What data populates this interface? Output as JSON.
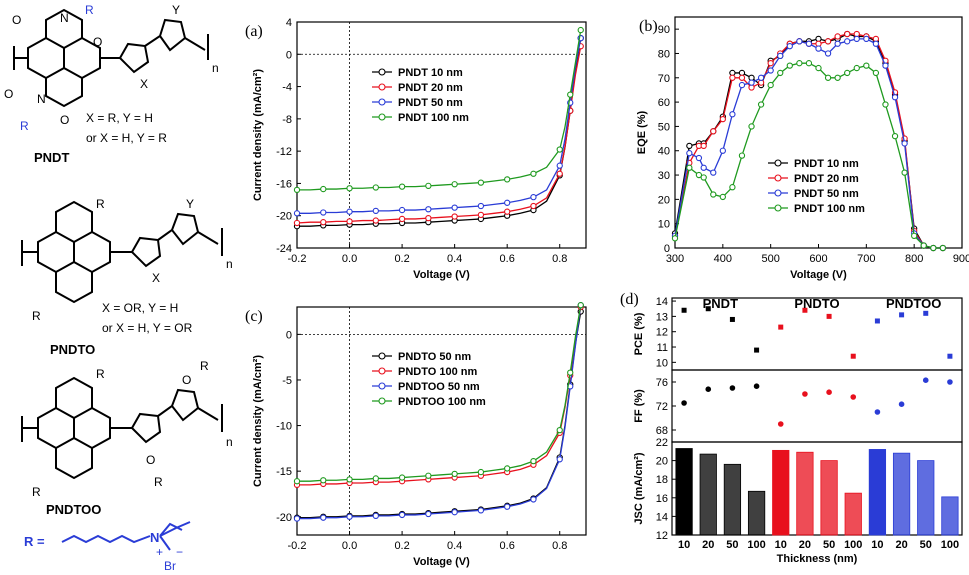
{
  "chem": {
    "pndt_name": "PNDT",
    "pndto_name": "PNDTO",
    "pndtoo_name": "PNDTOO",
    "r": "R",
    "y": "Y",
    "x": "X",
    "n": "n",
    "o": "O",
    "pndt_cond1": "X = R, Y = H",
    "pndt_cond2": "or X = H, Y = R",
    "pndto_cond1": "X = OR, Y = H",
    "pndto_cond2": "or X = H, Y = OR",
    "r_def": "R =",
    "n_plus": "N",
    "plus": "+",
    "minus": "−",
    "br": "Br"
  },
  "colors": {
    "black": "#000000",
    "red": "#e8101d",
    "blue": "#2a3cd6",
    "green": "#1f9a1f"
  },
  "chart_data": [
    {
      "panel": "(a)",
      "type": "line",
      "xlabel": "Voltage (V)",
      "ylabel": "Current density (mA/cm²)",
      "xlim": [
        -0.2,
        0.9
      ],
      "ylim": [
        -24,
        4
      ],
      "xticks": [
        "-0.2",
        "0.0",
        "0.2",
        "0.4",
        "0.6",
        "0.8"
      ],
      "yticks": [
        "4",
        "0",
        "-4",
        "-8",
        "-12",
        "-16",
        "-20",
        "-24"
      ],
      "legend_position": "center-left",
      "series": [
        {
          "name": "PNDT 10 nm",
          "color": "#000000",
          "x": [
            -0.2,
            -0.15,
            -0.1,
            -0.05,
            0,
            0.05,
            0.1,
            0.15,
            0.2,
            0.25,
            0.3,
            0.35,
            0.4,
            0.45,
            0.5,
            0.55,
            0.6,
            0.65,
            0.7,
            0.75,
            0.8,
            0.82,
            0.84,
            0.86,
            0.88
          ],
          "y": [
            -21.3,
            -21.3,
            -21.2,
            -21.2,
            -21.1,
            -21.1,
            -21.0,
            -21.0,
            -20.9,
            -20.9,
            -20.8,
            -20.7,
            -20.6,
            -20.5,
            -20.4,
            -20.2,
            -20.0,
            -19.7,
            -19.3,
            -18.2,
            -15.0,
            -11.5,
            -7.0,
            -2.0,
            2.0
          ]
        },
        {
          "name": "PNDT 20 nm",
          "color": "#e8101d",
          "x": [
            -0.2,
            -0.15,
            -0.1,
            -0.05,
            0,
            0.05,
            0.1,
            0.15,
            0.2,
            0.25,
            0.3,
            0.35,
            0.4,
            0.45,
            0.5,
            0.55,
            0.6,
            0.65,
            0.7,
            0.75,
            0.8,
            0.82,
            0.84,
            0.86,
            0.88
          ],
          "y": [
            -20.9,
            -20.8,
            -20.8,
            -20.7,
            -20.7,
            -20.6,
            -20.6,
            -20.5,
            -20.4,
            -20.4,
            -20.3,
            -20.2,
            -20.1,
            -20.0,
            -19.9,
            -19.7,
            -19.5,
            -19.2,
            -18.8,
            -17.8,
            -14.8,
            -11.5,
            -7.0,
            -2.5,
            1.0
          ]
        },
        {
          "name": "PNDT 50 nm",
          "color": "#2a3cd6",
          "x": [
            -0.2,
            -0.15,
            -0.1,
            -0.05,
            0,
            0.05,
            0.1,
            0.15,
            0.2,
            0.25,
            0.3,
            0.35,
            0.4,
            0.45,
            0.5,
            0.55,
            0.6,
            0.65,
            0.7,
            0.75,
            0.8,
            0.82,
            0.84,
            0.86,
            0.88
          ],
          "y": [
            -19.7,
            -19.7,
            -19.6,
            -19.6,
            -19.5,
            -19.5,
            -19.4,
            -19.4,
            -19.3,
            -19.3,
            -19.2,
            -19.1,
            -19.0,
            -18.9,
            -18.8,
            -18.6,
            -18.4,
            -18.1,
            -17.7,
            -16.8,
            -13.8,
            -10.5,
            -6.0,
            -1.5,
            2.0
          ]
        },
        {
          "name": "PNDT 100 nm",
          "color": "#1f9a1f",
          "x": [
            -0.2,
            -0.15,
            -0.1,
            -0.05,
            0,
            0.05,
            0.1,
            0.15,
            0.2,
            0.25,
            0.3,
            0.35,
            0.4,
            0.45,
            0.5,
            0.55,
            0.6,
            0.65,
            0.7,
            0.75,
            0.8,
            0.82,
            0.84,
            0.86,
            0.88
          ],
          "y": [
            -16.8,
            -16.8,
            -16.7,
            -16.7,
            -16.6,
            -16.6,
            -16.5,
            -16.5,
            -16.4,
            -16.4,
            -16.3,
            -16.2,
            -16.1,
            -16.0,
            -15.9,
            -15.7,
            -15.5,
            -15.2,
            -14.8,
            -14.0,
            -11.8,
            -9.0,
            -5.0,
            -1.0,
            3.0
          ]
        }
      ]
    },
    {
      "panel": "(b)",
      "type": "line",
      "xlabel": "Voltage (V)",
      "ylabel": "EQE (%)",
      "xlim": [
        300,
        900
      ],
      "ylim": [
        0,
        95
      ],
      "xticks": [
        "300",
        "400",
        "500",
        "600",
        "700",
        "800",
        "900"
      ],
      "yticks": [
        "0",
        "10",
        "20",
        "30",
        "40",
        "50",
        "60",
        "70",
        "80",
        "90"
      ],
      "legend_position": "bottom-center",
      "series": [
        {
          "name": "PNDT 10 nm",
          "color": "#000000",
          "x": [
            300,
            330,
            350,
            360,
            380,
            400,
            420,
            440,
            460,
            480,
            500,
            520,
            540,
            560,
            580,
            600,
            620,
            640,
            660,
            680,
            700,
            720,
            740,
            760,
            780,
            800,
            820,
            840,
            860
          ],
          "y": [
            6,
            42,
            43,
            43,
            48,
            54,
            72,
            72,
            70,
            67,
            77,
            79,
            84,
            85,
            85,
            86,
            85,
            86,
            88,
            87,
            87,
            85,
            76,
            63,
            44,
            8,
            1,
            0,
            0
          ]
        },
        {
          "name": "PNDT 20 nm",
          "color": "#e8101d",
          "x": [
            300,
            330,
            350,
            360,
            380,
            400,
            420,
            440,
            460,
            480,
            500,
            520,
            540,
            560,
            580,
            600,
            620,
            640,
            660,
            680,
            700,
            720,
            740,
            760,
            780,
            800,
            820,
            840,
            860
          ],
          "y": [
            5,
            35,
            42,
            42,
            48,
            53,
            70,
            70,
            66,
            68,
            76,
            80,
            84,
            85,
            84,
            84,
            85,
            87,
            88,
            88,
            87,
            86,
            77,
            64,
            45,
            7,
            1,
            0,
            0
          ]
        },
        {
          "name": "PNDT 50 nm",
          "color": "#2a3cd6",
          "x": [
            300,
            330,
            350,
            360,
            380,
            400,
            420,
            440,
            460,
            480,
            500,
            520,
            540,
            560,
            580,
            600,
            620,
            640,
            660,
            680,
            700,
            720,
            740,
            760,
            780,
            800,
            820,
            840,
            860
          ],
          "y": [
            5,
            39,
            37,
            33,
            31,
            40,
            55,
            67,
            68,
            70,
            73,
            79,
            83,
            85,
            84,
            82,
            80,
            84,
            85,
            86,
            86,
            84,
            75,
            62,
            43,
            6,
            1,
            0,
            0
          ]
        },
        {
          "name": "PNDT 100 nm",
          "color": "#1f9a1f",
          "x": [
            300,
            330,
            350,
            360,
            380,
            400,
            420,
            440,
            460,
            480,
            500,
            520,
            540,
            560,
            580,
            600,
            620,
            640,
            660,
            680,
            700,
            720,
            740,
            760,
            780,
            800,
            820,
            840,
            860
          ],
          "y": [
            4,
            33,
            30,
            29,
            22,
            21,
            25,
            38,
            50,
            59,
            67,
            72,
            75,
            76,
            76,
            74,
            70,
            70,
            72,
            74,
            75,
            72,
            59,
            46,
            31,
            5,
            1,
            0,
            0
          ]
        }
      ]
    },
    {
      "panel": "(c)",
      "type": "line",
      "xlabel": "Voltage (V)",
      "ylabel": "Current density (mA/cm²)",
      "xlim": [
        -0.2,
        0.9
      ],
      "ylim": [
        -22,
        3
      ],
      "xticks": [
        "-0.2",
        "0.0",
        "0.2",
        "0.4",
        "0.6",
        "0.8"
      ],
      "yticks": [
        "0",
        "-5",
        "-10",
        "-15",
        "-20"
      ],
      "legend_position": "top-center",
      "series": [
        {
          "name": "PNDTO 50 nm",
          "color": "#000000",
          "x": [
            -0.2,
            -0.15,
            -0.1,
            -0.05,
            0,
            0.05,
            0.1,
            0.15,
            0.2,
            0.25,
            0.3,
            0.35,
            0.4,
            0.45,
            0.5,
            0.55,
            0.6,
            0.65,
            0.7,
            0.75,
            0.8,
            0.82,
            0.84,
            0.86,
            0.88
          ],
          "y": [
            -20.1,
            -20.1,
            -20.0,
            -20.0,
            -19.9,
            -19.9,
            -19.8,
            -19.8,
            -19.7,
            -19.7,
            -19.6,
            -19.5,
            -19.4,
            -19.3,
            -19.2,
            -19.0,
            -18.8,
            -18.5,
            -18.0,
            -16.8,
            -13.5,
            -10.0,
            -5.5,
            -1.0,
            2.5
          ]
        },
        {
          "name": "PNDTO 100 nm",
          "color": "#e8101d",
          "x": [
            -0.2,
            -0.15,
            -0.1,
            -0.05,
            0,
            0.05,
            0.1,
            0.15,
            0.2,
            0.25,
            0.3,
            0.35,
            0.4,
            0.45,
            0.5,
            0.55,
            0.6,
            0.65,
            0.7,
            0.75,
            0.8,
            0.82,
            0.84,
            0.86,
            0.88
          ],
          "y": [
            -16.5,
            -16.5,
            -16.4,
            -16.4,
            -16.3,
            -16.3,
            -16.2,
            -16.2,
            -16.1,
            -16.0,
            -15.9,
            -15.8,
            -15.7,
            -15.6,
            -15.5,
            -15.3,
            -15.1,
            -14.8,
            -14.3,
            -13.3,
            -10.8,
            -8.0,
            -4.5,
            -0.5,
            3.0
          ]
        },
        {
          "name": "PNDTOO 50 nm",
          "color": "#2a3cd6",
          "x": [
            -0.2,
            -0.15,
            -0.1,
            -0.05,
            0,
            0.05,
            0.1,
            0.15,
            0.2,
            0.25,
            0.3,
            0.35,
            0.4,
            0.45,
            0.5,
            0.55,
            0.6,
            0.65,
            0.7,
            0.75,
            0.8,
            0.82,
            0.84,
            0.86,
            0.88
          ],
          "y": [
            -20.2,
            -20.2,
            -20.1,
            -20.1,
            -20.0,
            -20.0,
            -19.9,
            -19.9,
            -19.8,
            -19.8,
            -19.7,
            -19.6,
            -19.5,
            -19.4,
            -19.3,
            -19.1,
            -18.9,
            -18.6,
            -18.1,
            -16.9,
            -13.7,
            -10.2,
            -5.7,
            -1.2,
            3.2
          ]
        },
        {
          "name": "PNDTOO 100 nm",
          "color": "#1f9a1f",
          "x": [
            -0.2,
            -0.15,
            -0.1,
            -0.05,
            0,
            0.05,
            0.1,
            0.15,
            0.2,
            0.25,
            0.3,
            0.35,
            0.4,
            0.45,
            0.5,
            0.55,
            0.6,
            0.65,
            0.7,
            0.75,
            0.8,
            0.82,
            0.84,
            0.86,
            0.88
          ],
          "y": [
            -16.1,
            -16.1,
            -16.0,
            -16.0,
            -15.9,
            -15.9,
            -15.8,
            -15.8,
            -15.7,
            -15.6,
            -15.5,
            -15.4,
            -15.3,
            -15.2,
            -15.1,
            -14.9,
            -14.7,
            -14.4,
            -13.9,
            -12.9,
            -10.5,
            -7.8,
            -4.2,
            -0.2,
            3.2
          ]
        }
      ]
    },
    {
      "panel": "(d)",
      "type": "bar",
      "xlabel": "Thickness (nm)",
      "group_labels": [
        "PNDT",
        "PNDTO",
        "PNDTOO"
      ],
      "group_colors": [
        "#000000",
        "#e8101d",
        "#2a3cd6"
      ],
      "categories": [
        "10",
        "20",
        "50",
        "100",
        "10",
        "20",
        "50",
        "100",
        "10",
        "20",
        "50",
        "100"
      ],
      "pce": {
        "ylabel": "PCE (%)",
        "ylim": [
          9.5,
          14.2
        ],
        "yticks": [
          "14",
          "13",
          "12",
          "11",
          "10"
        ],
        "values": [
          13.4,
          13.5,
          12.8,
          10.8,
          12.3,
          13.4,
          13.0,
          10.4,
          12.7,
          13.1,
          13.2,
          10.4
        ]
      },
      "ff": {
        "ylabel": "FF (%)",
        "ylim": [
          66,
          78
        ],
        "yticks": [
          "76",
          "72",
          "68"
        ],
        "values": [
          72.5,
          74.8,
          75.0,
          75.3,
          69.0,
          74.0,
          74.3,
          73.5,
          71.0,
          72.3,
          76.3,
          76.0
        ]
      },
      "jsc": {
        "ylabel": "JSC (mA/cm²)",
        "ylim": [
          12,
          22
        ],
        "yticks": [
          "22",
          "20",
          "18",
          "16",
          "14",
          "12"
        ],
        "values": [
          21.3,
          20.7,
          19.6,
          16.7,
          21.1,
          20.9,
          20.0,
          16.5,
          21.2,
          20.8,
          20.0,
          16.1
        ]
      }
    }
  ]
}
